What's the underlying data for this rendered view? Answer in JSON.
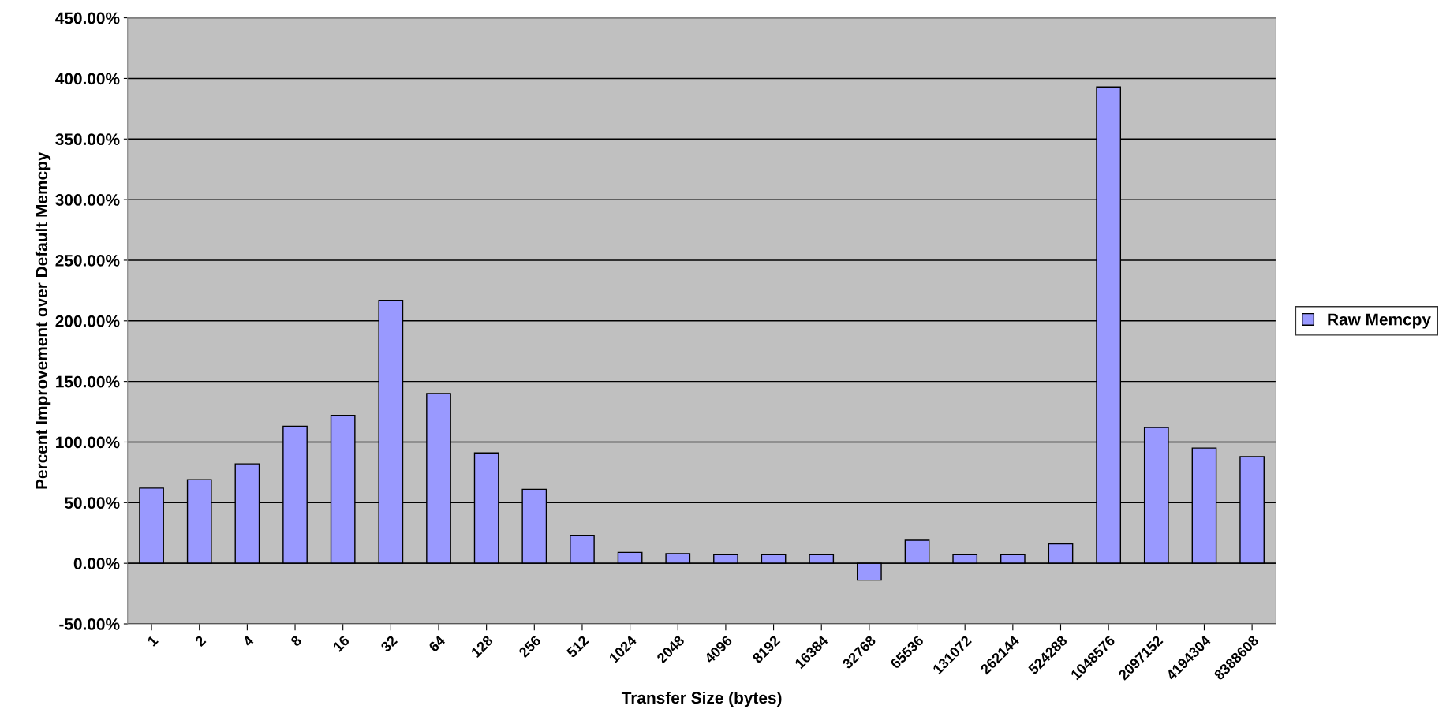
{
  "chart_data": {
    "type": "bar",
    "xlabel": "Transfer Size (bytes)",
    "ylabel": "Percent Improvement over Default Memcpy",
    "categories": [
      "1",
      "2",
      "4",
      "8",
      "16",
      "32",
      "64",
      "128",
      "256",
      "512",
      "1024",
      "2048",
      "4096",
      "8192",
      "16384",
      "32768",
      "65536",
      "131072",
      "262144",
      "524288",
      "1048576",
      "2097152",
      "4194304",
      "8388608"
    ],
    "series": [
      {
        "name": "Raw Memcpy",
        "color": "#9999ff",
        "values": [
          62,
          69,
          82,
          113,
          122,
          217,
          140,
          91,
          61,
          23,
          9,
          8,
          7,
          7,
          7,
          -14,
          19,
          7,
          7,
          16,
          393,
          112,
          95,
          88
        ]
      }
    ],
    "ylim": [
      -50,
      450
    ],
    "yticks": [
      {
        "value": -50,
        "label": "-50.00%"
      },
      {
        "value": 0,
        "label": "0.00%"
      },
      {
        "value": 50,
        "label": "50.00%"
      },
      {
        "value": 100,
        "label": "100.00%"
      },
      {
        "value": 150,
        "label": "150.00%"
      },
      {
        "value": 200,
        "label": "200.00%"
      },
      {
        "value": 250,
        "label": "250.00%"
      },
      {
        "value": 300,
        "label": "300.00%"
      },
      {
        "value": 350,
        "label": "350.00%"
      },
      {
        "value": 400,
        "label": "400.00%"
      },
      {
        "value": 450,
        "label": "450.00%"
      }
    ],
    "grid": "y",
    "legend": "right"
  }
}
